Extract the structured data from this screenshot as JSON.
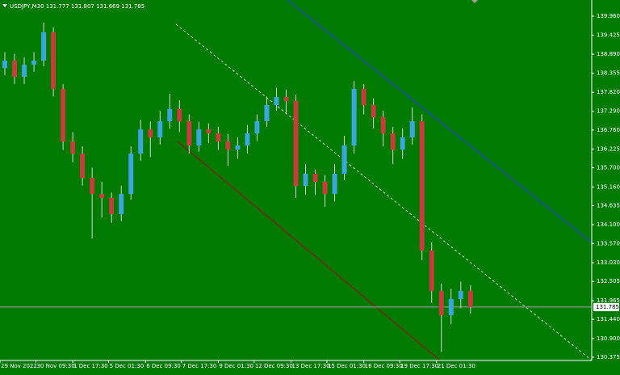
{
  "chart_data": {
    "type": "candlestick",
    "title": "USDJPY,M30 131.777 131.807 131.669 131.785",
    "background": "#007a00",
    "up_color": "#3aa6dc",
    "down_color": "#c83c3c",
    "wick_color": "#d9d9d9",
    "xlim": [
      0,
      61
    ],
    "xticks": [
      {
        "value": 0,
        "label": "29 Nov 2022"
      },
      {
        "value": 3.7,
        "label": "30 Nov 09:30"
      },
      {
        "value": 7.5,
        "label": "1 Dec 17:30"
      },
      {
        "value": 11.2,
        "label": "5 Dec 01:30"
      },
      {
        "value": 15,
        "label": "6 Dec 09:30"
      },
      {
        "value": 18.7,
        "label": "7 Dec 17:30"
      },
      {
        "value": 22.5,
        "label": "9 Dec 01:30"
      },
      {
        "value": 26.2,
        "label": "12 Dec 09:30"
      },
      {
        "value": 30,
        "label": "13 Dec 17:30"
      },
      {
        "value": 33.7,
        "label": "15 Dec 01:30"
      },
      {
        "value": 37.5,
        "label": "16 Dec 09:30"
      },
      {
        "value": 41.2,
        "label": "19 Dec 17:30"
      },
      {
        "value": 45,
        "label": "21 Dec 01:30"
      }
    ],
    "ylim": [
      130.284,
      140.414
    ],
    "yticks": [
      {
        "value": 139.96,
        "label": "139.960"
      },
      {
        "value": 139.425,
        "label": "139.425"
      },
      {
        "value": 138.89,
        "label": "138.890"
      },
      {
        "value": 138.355,
        "label": "138.355"
      },
      {
        "value": 137.82,
        "label": "137.820"
      },
      {
        "value": 137.29,
        "label": "137.290"
      },
      {
        "value": 136.76,
        "label": "136.760"
      },
      {
        "value": 136.225,
        "label": "136.225"
      },
      {
        "value": 135.7,
        "label": "135.700"
      },
      {
        "value": 135.16,
        "label": "135.160"
      },
      {
        "value": 134.635,
        "label": "134.635"
      },
      {
        "value": 134.1,
        "label": "134.100"
      },
      {
        "value": 133.57,
        "label": "133.570"
      },
      {
        "value": 133.03,
        "label": "133.030"
      },
      {
        "value": 132.505,
        "label": "132.505"
      },
      {
        "value": 131.965,
        "label": "131.965"
      },
      {
        "value": 131.44,
        "label": "131.440"
      },
      {
        "value": 130.9,
        "label": "130.900"
      },
      {
        "value": 130.375,
        "label": "130.375"
      }
    ],
    "last_price": {
      "value": 131.785,
      "label": "131.785"
    },
    "open": [
      138.5,
      138.711,
      138.256,
      138.597,
      138.711,
      139.506,
      137.916,
      136.439,
      136.099,
      135.417,
      134.963,
      134.85,
      134.395,
      134.963,
      136.099,
      136.78,
      136.553,
      137.007,
      137.348,
      137.007,
      136.326,
      136.78,
      136.667,
      136.439,
      136.212,
      136.326,
      136.667,
      137.007,
      137.461,
      137.689,
      137.575,
      135.19,
      135.531,
      135.304,
      134.963,
      135.531,
      136.326,
      137.916,
      137.461,
      137.121,
      136.667,
      136.212,
      136.553,
      137.007,
      133.373,
      132.238,
      131.556,
      132.011,
      132.238
    ],
    "high": [
      138.95,
      138.9,
      138.8,
      138.95,
      139.78,
      139.65,
      138.05,
      136.7,
      136.3,
      135.7,
      135.3,
      135,
      135.2,
      136.3,
      137.05,
      137,
      137.3,
      137.78,
      137.6,
      137.2,
      137,
      136.95,
      136.85,
      136.65,
      136.55,
      136.9,
      137.2,
      137.7,
      137.95,
      137.9,
      137.75,
      135.8,
      135.65,
      135.5,
      135.8,
      136.6,
      138.14,
      138.05,
      137.65,
      137.3,
      136.85,
      136.8,
      137.4,
      137.2,
      133.6,
      132.45,
      132.3,
      132.5,
      132.4
    ],
    "low": [
      138.3,
      138.05,
      138.05,
      138.4,
      138.55,
      137.7,
      136.2,
      135.85,
      135.2,
      133.71,
      134.3,
      134.15,
      134.2,
      134.8,
      135.9,
      136,
      136.35,
      136.8,
      136.7,
      136.1,
      136.15,
      136.4,
      136.2,
      135.75,
      135.95,
      136.1,
      136.45,
      136.85,
      137.3,
      137.2,
      134.85,
      134.95,
      134.95,
      134.6,
      134.75,
      135.35,
      136.1,
      137.2,
      136.8,
      136.3,
      135.8,
      135.95,
      136.35,
      133.1,
      131.9,
      130.53,
      131.3,
      131.75,
      131.6
    ],
    "close": [
      138.711,
      138.256,
      138.597,
      138.711,
      139.506,
      137.916,
      136.439,
      136.099,
      135.417,
      134.963,
      134.85,
      134.395,
      134.963,
      136.099,
      136.78,
      136.553,
      137.007,
      137.348,
      137.007,
      136.326,
      136.78,
      136.667,
      136.439,
      136.212,
      136.326,
      136.667,
      137.007,
      137.461,
      137.689,
      137.575,
      135.19,
      135.531,
      135.304,
      134.963,
      135.531,
      136.326,
      137.916,
      137.461,
      137.121,
      136.667,
      136.212,
      136.553,
      137.007,
      133.373,
      132.238,
      131.556,
      132.011,
      132.238,
      131.785
    ]
  }
}
